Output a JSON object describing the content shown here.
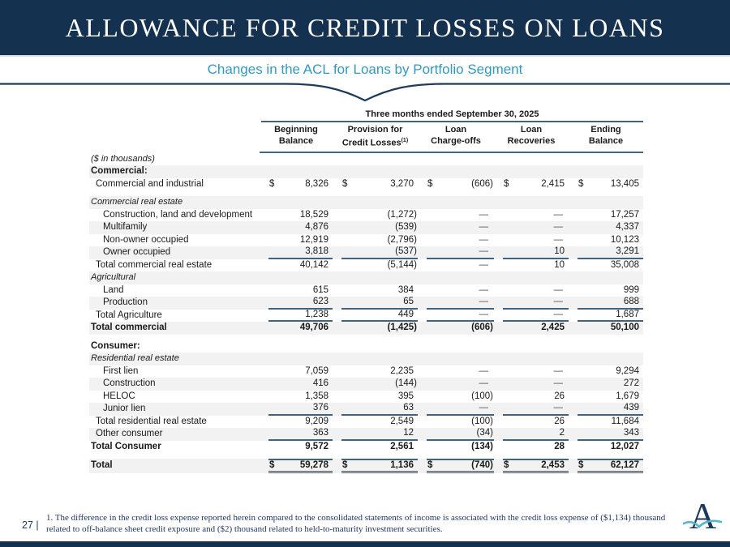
{
  "slide": {
    "title": "ALLOWANCE FOR CREDIT LOSSES ON LOANS",
    "subtitle": "Changes in the ACL for Loans by Portfolio Segment"
  },
  "table": {
    "span_header": "Three months ended September 30, 2025",
    "units_note": "($ in thousands)",
    "columns": [
      {
        "line1": "Beginning",
        "line2": "Balance"
      },
      {
        "line1": "Provision for",
        "line2": "Credit Losses",
        "sup": "(1)"
      },
      {
        "line1": "Loan",
        "line2": "Charge-offs"
      },
      {
        "line1": "Loan",
        "line2": "Recoveries"
      },
      {
        "line1": "Ending",
        "line2": "Balance"
      }
    ],
    "rows": [
      {
        "label": "($ in thousands)",
        "style": "note"
      },
      {
        "label": "Commercial:",
        "style": "bold",
        "shade": true
      },
      {
        "label": "Commercial and industrial",
        "indent": 1,
        "dollar": true,
        "values": [
          "8,326",
          "3,270",
          "(606)",
          "2,415",
          "13,405"
        ]
      },
      {
        "gap": true
      },
      {
        "label": "Commercial real estate",
        "style": "italic",
        "shade": true
      },
      {
        "label": "Construction, land and development",
        "indent": 2,
        "values": [
          "18,529",
          "(1,272)",
          "—",
          "—",
          "17,257"
        ]
      },
      {
        "label": "Multifamily",
        "indent": 2,
        "shade": true,
        "values": [
          "4,876",
          "(539)",
          "—",
          "—",
          "4,337"
        ]
      },
      {
        "label": "Non-owner occupied",
        "indent": 2,
        "values": [
          "12,919",
          "(2,796)",
          "—",
          "—",
          "10,123"
        ]
      },
      {
        "label": "Owner occupied",
        "indent": 2,
        "shade": true,
        "underline": true,
        "values": [
          "3,818",
          "(537)",
          "—",
          "10",
          "3,291"
        ]
      },
      {
        "label": "Total commercial real estate",
        "indent": 1,
        "values": [
          "40,142",
          "(5,144)",
          "—",
          "10",
          "35,008"
        ]
      },
      {
        "label": "Agricultural",
        "style": "italic",
        "shade": true
      },
      {
        "label": "Land",
        "indent": 2,
        "values": [
          "615",
          "384",
          "—",
          "—",
          "999"
        ]
      },
      {
        "label": "Production",
        "indent": 2,
        "shade": true,
        "underline": true,
        "values": [
          "623",
          "65",
          "—",
          "—",
          "688"
        ]
      },
      {
        "label": "Total Agriculture",
        "indent": 1,
        "underline": true,
        "values": [
          "1,238",
          "449",
          "—",
          "—",
          "1,687"
        ]
      },
      {
        "label": "Total commercial",
        "style": "bold",
        "shade": true,
        "values": [
          "49,706",
          "(1,425)",
          "(606)",
          "2,425",
          "50,100"
        ]
      },
      {
        "gap": true
      },
      {
        "label": "Consumer:",
        "style": "bold"
      },
      {
        "label": "Residential real estate",
        "style": "italic",
        "shade": true
      },
      {
        "label": "First lien",
        "indent": 2,
        "values": [
          "7,059",
          "2,235",
          "—",
          "—",
          "9,294"
        ]
      },
      {
        "label": "Construction",
        "indent": 2,
        "shade": true,
        "values": [
          "416",
          "(144)",
          "—",
          "—",
          "272"
        ]
      },
      {
        "label": "HELOC",
        "indent": 2,
        "values": [
          "1,358",
          "395",
          "(100)",
          "26",
          "1,679"
        ]
      },
      {
        "label": "Junior lien",
        "indent": 2,
        "shade": true,
        "underline": true,
        "values": [
          "376",
          "63",
          "—",
          "—",
          "439"
        ]
      },
      {
        "label": "Total residential real estate",
        "indent": 1,
        "values": [
          "9,209",
          "2,549",
          "(100)",
          "26",
          "11,684"
        ]
      },
      {
        "label": "Other consumer",
        "indent": 1,
        "shade": true,
        "underline": true,
        "values": [
          "363",
          "12",
          "(34)",
          "2",
          "343"
        ]
      },
      {
        "label": "Total Consumer",
        "style": "bold",
        "values": [
          "9,572",
          "2,561",
          "(134)",
          "28",
          "12,027"
        ]
      },
      {
        "gap": true
      },
      {
        "label": "Total",
        "style": "bold",
        "shade": true,
        "dollar": true,
        "topline": true,
        "double_underline": true,
        "values": [
          "59,278",
          "1,136",
          "(740)",
          "2,453",
          "62,127"
        ]
      }
    ]
  },
  "footer": {
    "page_number": "27 |",
    "footnote": "1. The difference in the credit loss expense reported herein compared to the consolidated statements of income is associated with the credit loss expense of ($1,134) thousand related to off-balance sheet credit exposure and ($2) thousand related to held-to-maturity investment securities.",
    "logo_letter": "A"
  },
  "colors": {
    "header_navy": "#14314f",
    "subtitle_teal": "#3399bd",
    "rule_steel_blue": "#41637e",
    "row_stripe": "#f2f2f2",
    "footnote_navy": "#1f3864",
    "logo_navy": "#1b3a5c",
    "logo_teal": "#55b6cc"
  }
}
